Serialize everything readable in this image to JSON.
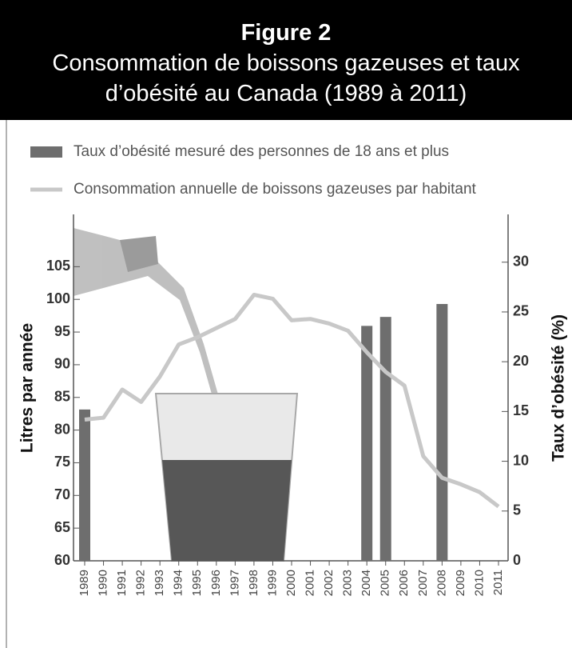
{
  "chart_data": {
    "type": "bar",
    "title": "Figure 2",
    "subtitle": "Consommation de boissons gazeuses et taux d’obésité au Canada (1989 à 2011)",
    "y_label": "Litres par année",
    "y2_label": "Taux d’obésité (%)",
    "categories": [
      "1989",
      "1990",
      "1991",
      "1992",
      "1993",
      "1994",
      "1995",
      "1996",
      "1997",
      "1998",
      "1999",
      "2000",
      "2001",
      "2002",
      "2003",
      "2004",
      "2005",
      "2006",
      "2007",
      "2008",
      "2009",
      "2010",
      "2011"
    ],
    "series": [
      {
        "name": "Taux d’obésité mesuré des personnes de 18 ans et plus",
        "type": "bar",
        "axis": "y2",
        "color": "#6e6e6e",
        "values": [
          15.2,
          null,
          null,
          null,
          null,
          null,
          null,
          null,
          null,
          null,
          null,
          null,
          null,
          null,
          null,
          23.6,
          24.5,
          null,
          null,
          25.8,
          null,
          null,
          null
        ]
      },
      {
        "name": "Consommation annuelle de boissons gazeuses par habitant",
        "type": "line",
        "color": "#c8c8c8",
        "values": [
          81.6,
          81.9,
          86.2,
          84.3,
          88.2,
          93.1,
          94.2,
          95.6,
          97.0,
          100.7,
          100.1,
          96.8,
          97.0,
          96.3,
          95.2,
          91.9,
          88.9,
          86.8,
          76.0,
          72.7,
          71.7,
          70.5,
          68.3
        ]
      }
    ],
    "ylim": [
      60,
      113
    ],
    "yticks": [
      60,
      65,
      70,
      75,
      80,
      85,
      90,
      95,
      100,
      105
    ],
    "y2lim": [
      0,
      34.8
    ],
    "y2ticks": [
      0,
      5,
      10,
      15,
      20,
      25,
      30
    ]
  }
}
